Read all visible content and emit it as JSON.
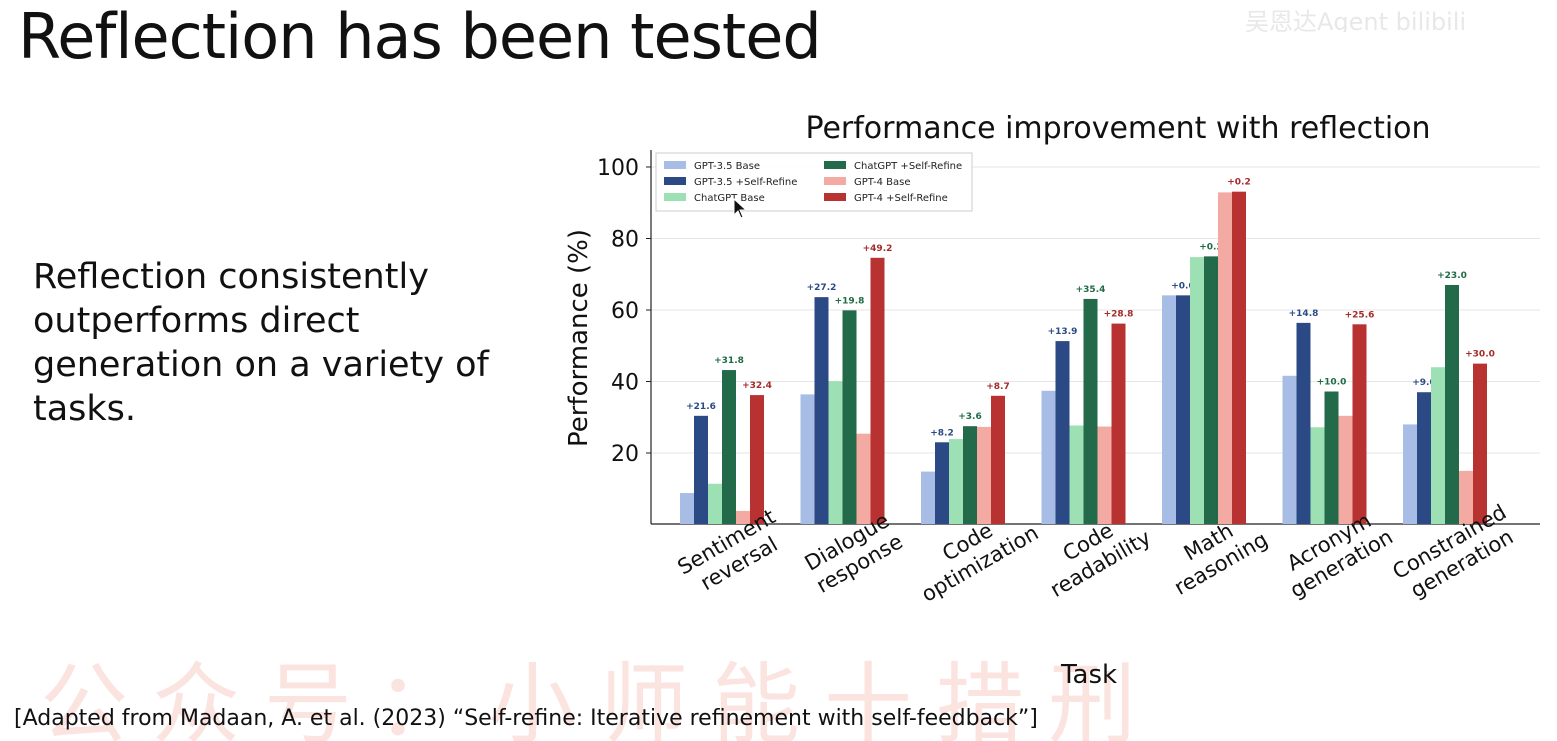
{
  "slide": {
    "title": "Reflection has been tested",
    "body": "Reflection consistently outperforms direct generation on a variety of tasks.",
    "citation": "[Adapted from Madaan, A. et al. (2023) “Self-refine: Iterative refinement with self-feedback”]",
    "watermark_top": "吴恩达Agent  bilibili",
    "watermark_bottom": "公众号：小师能十措刑"
  },
  "chart_data": {
    "type": "bar",
    "title": "Performance improvement with reflection",
    "xlabel": "Task",
    "ylabel": "Performance (%)",
    "ylim": [
      0,
      100
    ],
    "yticks": [
      20,
      40,
      60,
      80,
      100
    ],
    "grid": true,
    "legend_position": "top-left",
    "categories": [
      [
        "Sentiment",
        "reversal"
      ],
      [
        "Dialogue",
        "response"
      ],
      [
        "Code",
        "optimization"
      ],
      [
        "Code",
        "readability"
      ],
      [
        "Math",
        "reasoning"
      ],
      [
        "Acronym",
        "generation"
      ],
      [
        "Constrained",
        "generation"
      ]
    ],
    "series": [
      {
        "name": "GPT-3.5 Base",
        "color": "#a8bde6",
        "values": [
          8.8,
          36.4,
          14.8,
          37.4,
          64.1,
          41.6,
          28.0
        ],
        "labels": null
      },
      {
        "name": "GPT-3.5 +Self-Refine",
        "color": "#2b4a85",
        "values": [
          30.4,
          63.6,
          23.0,
          51.3,
          64.1,
          56.4,
          37.0
        ],
        "labels": [
          "+21.6",
          "+27.2",
          "+8.2",
          "+13.9",
          "+0.0",
          "+14.8",
          "+9.0"
        ],
        "label_color": "#2b4a85"
      },
      {
        "name": "ChatGPT Base",
        "color": "#9de0b4",
        "values": [
          11.4,
          40.1,
          23.9,
          27.7,
          74.8,
          27.2,
          44.0
        ],
        "labels": null
      },
      {
        "name": "ChatGPT +Self-Refine",
        "color": "#226a4a",
        "values": [
          43.2,
          59.9,
          27.5,
          63.1,
          75.0,
          37.2,
          67.0
        ],
        "labels": [
          "+31.8",
          "+19.8",
          "+3.6",
          "+35.4",
          "+0.2",
          "+10.0",
          "+23.0"
        ],
        "label_color": "#1f6b45"
      },
      {
        "name": "GPT-4 Base",
        "color": "#f2aaa2",
        "values": [
          3.8,
          25.4,
          27.3,
          27.4,
          92.9,
          30.4,
          15.0
        ],
        "labels": null
      },
      {
        "name": "GPT-4 +Self-Refine",
        "color": "#b93232",
        "values": [
          36.2,
          74.6,
          36.0,
          56.2,
          93.1,
          56.0,
          45.0
        ],
        "labels": [
          "+32.4",
          "+49.2",
          "+8.7",
          "+28.8",
          "+0.2",
          "+25.6",
          "+30.0"
        ],
        "label_color": "#a52a2a"
      }
    ]
  }
}
